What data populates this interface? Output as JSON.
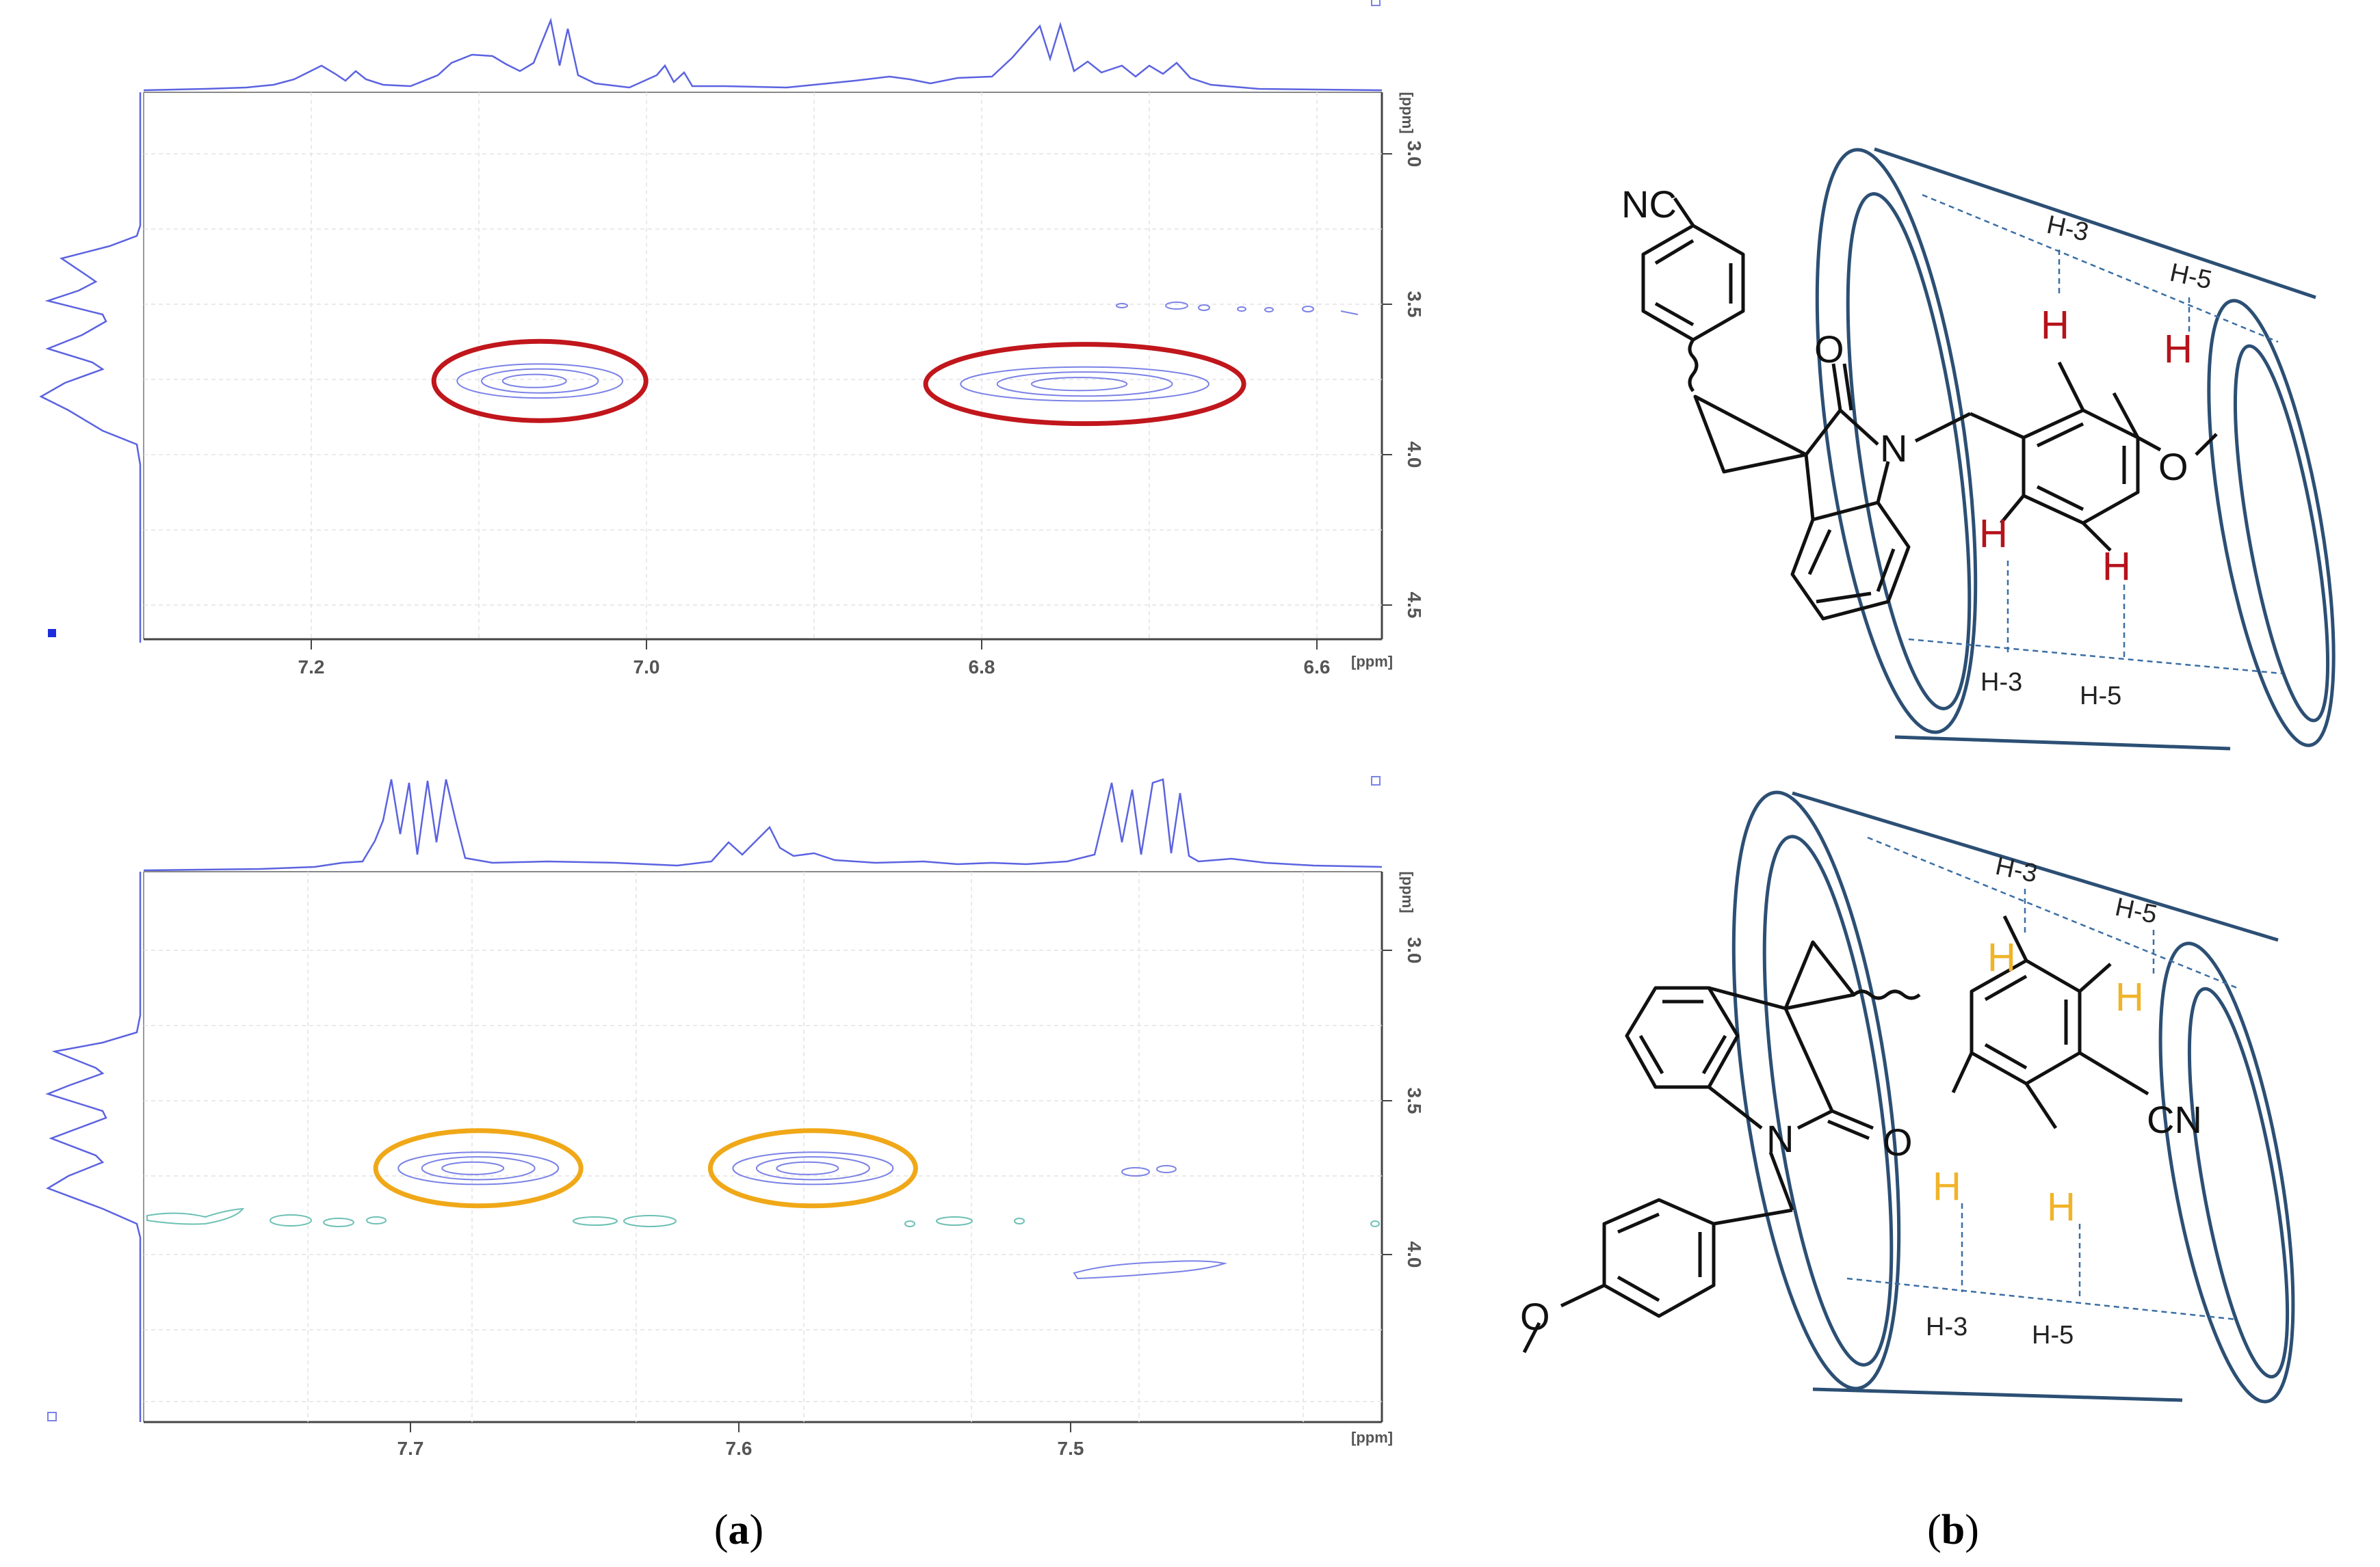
{
  "figure": {
    "panel_a_label": "a",
    "panel_b_label": "b"
  },
  "chart_data": [
    {
      "type": "scatter",
      "title": "",
      "xlabel": "[ppm]",
      "ylabel": "[ppm]",
      "x_ticks": [
        "7.2",
        "7.0",
        "6.8",
        "6.6"
      ],
      "y_ticks": [
        "3.0",
        "3.5",
        "4.0",
        "4.5"
      ],
      "xlim": [
        7.3,
        6.55
      ],
      "ylim": [
        2.75,
        4.55
      ],
      "x_reversed": true,
      "grid": true,
      "cross_peaks": [
        {
          "x": 7.06,
          "y": 3.7,
          "highlight": "red"
        },
        {
          "x": 6.73,
          "y": 3.71,
          "highlight": "red"
        }
      ],
      "highlight_color": "#c0161c",
      "contour_color": "#7b82e6"
    },
    {
      "type": "scatter",
      "title": "",
      "xlabel": "[ppm]",
      "ylabel": "[ppm]",
      "x_ticks": [
        "7.7",
        "7.6",
        "7.5"
      ],
      "y_ticks": [
        "3.0",
        "3.5",
        "4.0"
      ],
      "xlim": [
        7.78,
        7.41
      ],
      "ylim": [
        2.75,
        4.55
      ],
      "x_reversed": true,
      "grid": true,
      "cross_peaks": [
        {
          "x": 7.68,
          "y": 3.72,
          "highlight": "orange"
        },
        {
          "x": 7.58,
          "y": 3.72,
          "highlight": "orange"
        }
      ],
      "highlight_color": "#f0a818",
      "contour_color": "#7b82e6"
    }
  ],
  "structure_top": {
    "nc_label": "NC",
    "o_label": "O",
    "n_label": "N",
    "ome_label": "O",
    "h_inner_labels": [
      "H",
      "H",
      "H",
      "H"
    ],
    "h_cavity_labels": [
      "H-3",
      "H-5",
      "H-3",
      "H-5"
    ],
    "h_color": "#b5121b"
  },
  "structure_bottom": {
    "cn_label": "CN",
    "o_label": "O",
    "n_label": "N",
    "ome_label": "O",
    "h_inner_labels": [
      "H",
      "H",
      "H",
      "H"
    ],
    "h_cavity_labels": [
      "H-3",
      "H-5",
      "H-3",
      "H-5"
    ],
    "h_color": "#f0b429"
  },
  "colors": {
    "cyclodextrin": "#2c4f74",
    "spectrum": "#5b63e0",
    "bond": "#111111"
  }
}
